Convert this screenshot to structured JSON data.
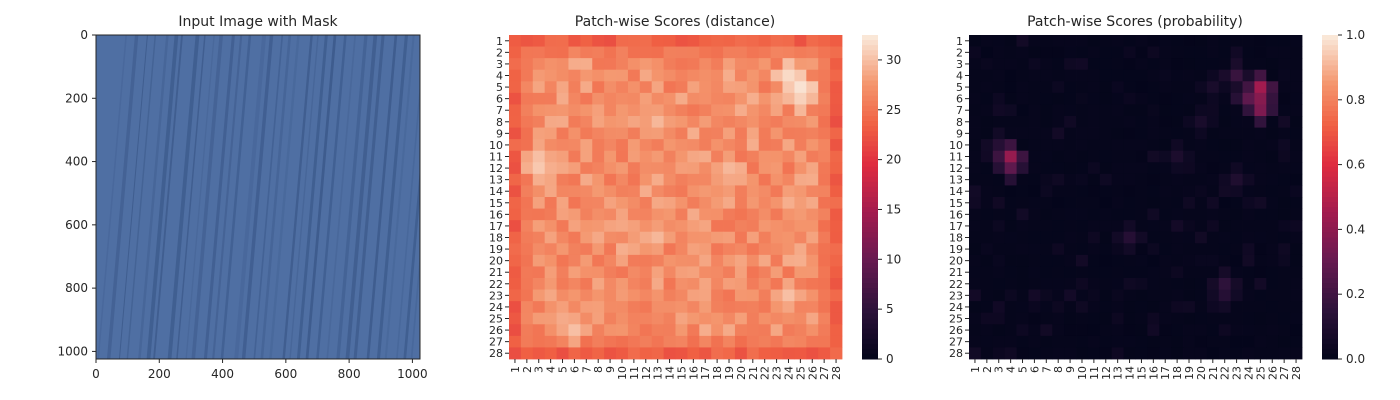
{
  "chart_data": [
    {
      "type": "image",
      "title": "Input Image with Mask",
      "xlim": [
        0,
        1024
      ],
      "ylim": [
        1024,
        0
      ],
      "xticks": [
        "0",
        "200",
        "400",
        "600",
        "800",
        "1000"
      ],
      "yticks": [
        "0",
        "200",
        "400",
        "600",
        "800",
        "1000"
      ],
      "image_description_colors": {
        "base": "#4f6fa3",
        "stripe": "#2e4a7a"
      }
    },
    {
      "type": "heatmap",
      "title": "Patch-wise Scores (distance)",
      "rows": 28,
      "cols": 28,
      "row_labels": [
        "1",
        "2",
        "3",
        "4",
        "5",
        "6",
        "7",
        "8",
        "9",
        "10",
        "11",
        "12",
        "13",
        "14",
        "15",
        "16",
        "17",
        "18",
        "19",
        "20",
        "21",
        "22",
        "23",
        "24",
        "25",
        "26",
        "27",
        "28"
      ],
      "col_labels": [
        "1",
        "2",
        "3",
        "4",
        "5",
        "6",
        "7",
        "8",
        "9",
        "10",
        "11",
        "12",
        "13",
        "14",
        "15",
        "16",
        "17",
        "18",
        "19",
        "20",
        "21",
        "22",
        "23",
        "24",
        "25",
        "26",
        "27",
        "28"
      ],
      "colormap": "rocket",
      "colorbar": {
        "min": 0,
        "max": 32.5,
        "ticks": [
          "0",
          "5",
          "10",
          "15",
          "20",
          "25",
          "30"
        ]
      },
      "border_value": 23,
      "interior_base": 27,
      "hotspots": [
        {
          "row": 5,
          "col": 25,
          "value": 32
        },
        {
          "row": 4,
          "col": 24,
          "value": 31.5
        },
        {
          "row": 6,
          "col": 25,
          "value": 31
        },
        {
          "row": 12,
          "col": 3,
          "value": 30.5
        },
        {
          "row": 11,
          "col": 3,
          "value": 30
        },
        {
          "row": 26,
          "col": 6,
          "value": 30
        },
        {
          "row": 23,
          "col": 24,
          "value": 30
        },
        {
          "row": 8,
          "col": 13,
          "value": 29.5
        },
        {
          "row": 18,
          "col": 13,
          "value": 29.5
        },
        {
          "row": 12,
          "col": 19,
          "value": 29.5
        },
        {
          "row": 6,
          "col": 21,
          "value": 29
        },
        {
          "row": 20,
          "col": 25,
          "value": 29
        },
        {
          "row": 15,
          "col": 24,
          "value": 29
        },
        {
          "row": 6,
          "col": 16,
          "value": 23
        },
        {
          "row": 16,
          "col": 10,
          "value": 24.5
        },
        {
          "row": 13,
          "col": 11,
          "value": 24.5
        }
      ]
    },
    {
      "type": "heatmap",
      "title": "Patch-wise Scores (probability)",
      "rows": 28,
      "cols": 28,
      "row_labels": [
        "1",
        "2",
        "3",
        "4",
        "5",
        "6",
        "7",
        "8",
        "9",
        "10",
        "11",
        "12",
        "13",
        "14",
        "15",
        "16",
        "17",
        "18",
        "19",
        "20",
        "21",
        "22",
        "23",
        "24",
        "25",
        "26",
        "27",
        "28"
      ],
      "col_labels": [
        "1",
        "2",
        "3",
        "4",
        "5",
        "6",
        "7",
        "8",
        "9",
        "10",
        "11",
        "12",
        "13",
        "14",
        "15",
        "16",
        "17",
        "18",
        "19",
        "20",
        "21",
        "22",
        "23",
        "24",
        "25",
        "26",
        "27",
        "28"
      ],
      "colormap": "rocket",
      "colorbar": {
        "min": 0,
        "max": 1.0,
        "ticks": [
          "0.0",
          "0.2",
          "0.4",
          "0.6",
          "0.8",
          "1.0"
        ]
      },
      "hotspots": [
        {
          "row": 5,
          "col": 25,
          "value": 0.45
        },
        {
          "row": 6,
          "col": 25,
          "value": 0.38
        },
        {
          "row": 7,
          "col": 25,
          "value": 0.36
        },
        {
          "row": 6,
          "col": 24,
          "value": 0.28
        },
        {
          "row": 4,
          "col": 23,
          "value": 0.18
        },
        {
          "row": 11,
          "col": 4,
          "value": 0.42
        },
        {
          "row": 12,
          "col": 4,
          "value": 0.28
        },
        {
          "row": 10,
          "col": 3,
          "value": 0.12
        },
        {
          "row": 22,
          "col": 22,
          "value": 0.15
        },
        {
          "row": 23,
          "col": 22,
          "value": 0.12
        },
        {
          "row": 18,
          "col": 14,
          "value": 0.12
        },
        {
          "row": 11,
          "col": 18,
          "value": 0.09
        },
        {
          "row": 13,
          "col": 23,
          "value": 0.1
        },
        {
          "row": 8,
          "col": 20,
          "value": 0.08
        },
        {
          "row": 5,
          "col": 21,
          "value": 0.08
        }
      ]
    }
  ]
}
